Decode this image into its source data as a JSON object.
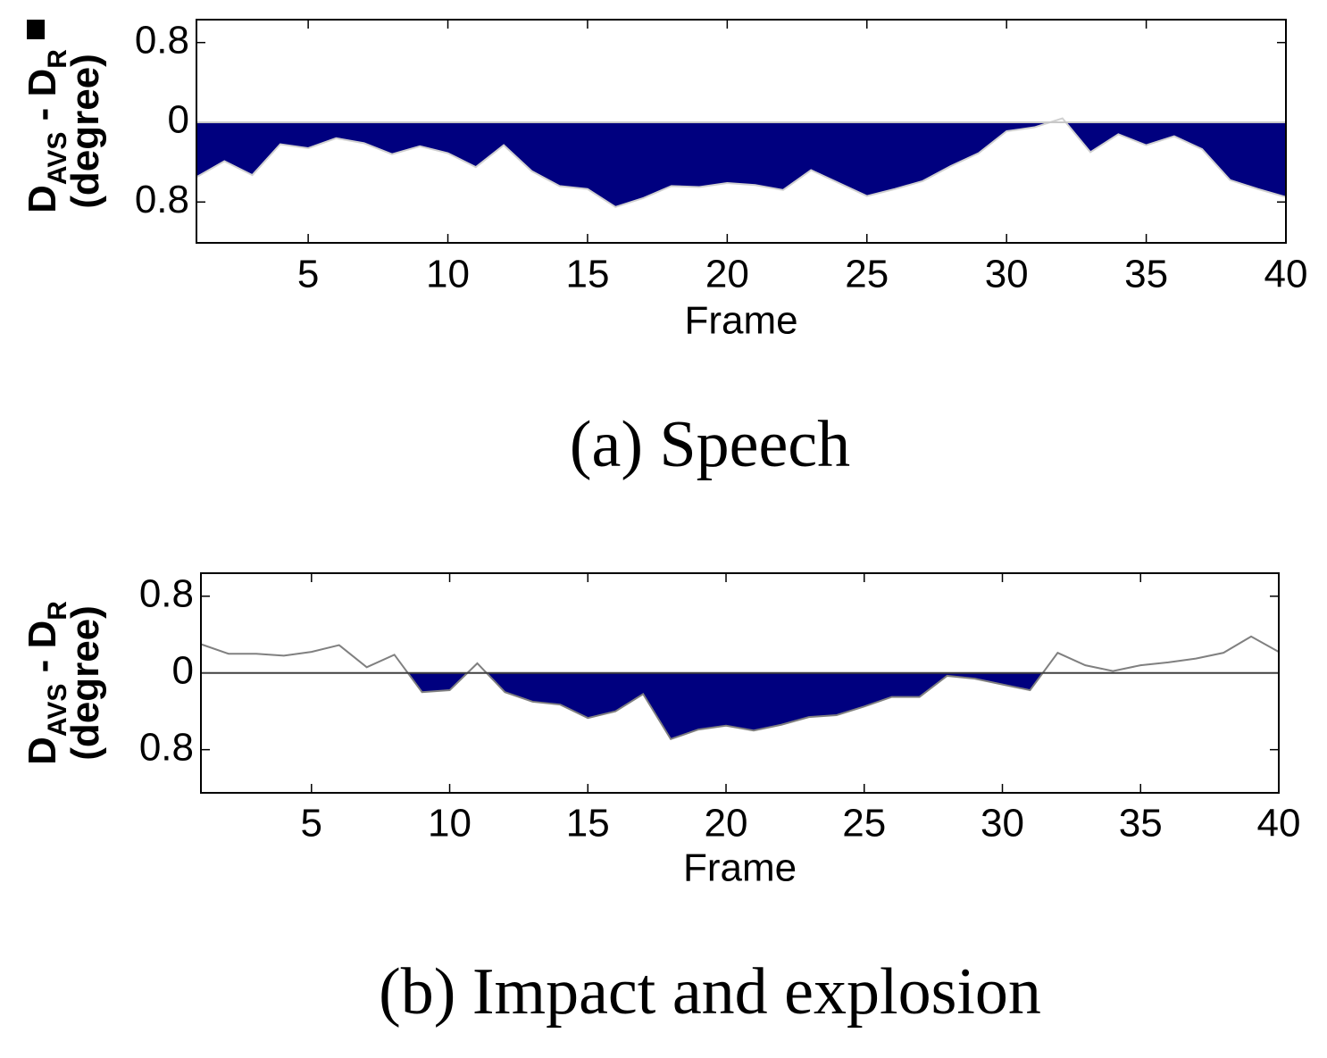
{
  "chart_data": [
    {
      "type": "area",
      "caption": "(a) Speech",
      "xlabel": "Frame",
      "ylabel": [
        "D",
        "AVS",
        " - D",
        "R"
      ],
      "ylabel_unit": "(degree)",
      "x": [
        1,
        2,
        3,
        4,
        5,
        6,
        7,
        8,
        9,
        10,
        11,
        12,
        13,
        14,
        15,
        16,
        17,
        18,
        19,
        20,
        21,
        22,
        23,
        24,
        25,
        26,
        27,
        28,
        29,
        30,
        31,
        32,
        33,
        34,
        35,
        36,
        37,
        38,
        39,
        40
      ],
      "values": [
        -0.55,
        -0.39,
        -0.53,
        -0.22,
        -0.26,
        -0.16,
        -0.21,
        -0.32,
        -0.24,
        -0.31,
        -0.45,
        -0.23,
        -0.49,
        -0.64,
        -0.67,
        -0.85,
        -0.76,
        -0.64,
        -0.65,
        -0.61,
        -0.63,
        -0.68,
        -0.48,
        -0.61,
        -0.74,
        -0.67,
        -0.59,
        -0.44,
        -0.31,
        -0.09,
        -0.05,
        0.04,
        -0.3,
        -0.12,
        -0.23,
        -0.14,
        -0.27,
        -0.58,
        -0.67,
        -0.75
      ],
      "color": "#00007f",
      "line_color": "#d0d0d0",
      "xlim": [
        1,
        40
      ],
      "xticks": [
        5,
        10,
        15,
        20,
        25,
        30,
        35,
        40
      ],
      "ylim": [
        -1.21,
        1.03
      ],
      "yticks": [
        {
          "value": -0.8,
          "label": "0.8"
        },
        0,
        0.8
      ]
    },
    {
      "type": "area",
      "caption": "(b) Impact and explosion",
      "xlabel": "Frame",
      "ylabel": [
        "D",
        "AVS",
        " - D",
        "R"
      ],
      "ylabel_unit": "(degree)",
      "x": [
        1,
        2,
        3,
        4,
        5,
        6,
        7,
        8,
        9,
        10,
        11,
        12,
        13,
        14,
        15,
        16,
        17,
        18,
        19,
        20,
        21,
        22,
        23,
        24,
        25,
        26,
        27,
        28,
        29,
        30,
        31,
        32,
        33,
        34,
        35,
        36,
        37,
        38,
        39,
        40
      ],
      "values": [
        0.3,
        0.2,
        0.2,
        0.18,
        0.22,
        0.29,
        0.06,
        0.19,
        -0.2,
        -0.18,
        0.1,
        -0.2,
        -0.3,
        -0.33,
        -0.47,
        -0.4,
        -0.22,
        -0.69,
        -0.59,
        -0.55,
        -0.6,
        -0.54,
        -0.46,
        -0.44,
        -0.35,
        -0.25,
        -0.25,
        -0.03,
        -0.06,
        -0.12,
        -0.18,
        0.21,
        0.08,
        0.02,
        0.08,
        0.11,
        0.15,
        0.21,
        0.38,
        0.22
      ],
      "color": "#00007f",
      "line_color": "#808080",
      "xlim": [
        1,
        40
      ],
      "xticks": [
        5,
        10,
        15,
        20,
        25,
        30,
        35,
        40
      ],
      "ylim": [
        -1.25,
        1.04
      ],
      "yticks": [
        {
          "value": -0.8,
          "label": "0.8"
        },
        0,
        0.8
      ]
    }
  ]
}
